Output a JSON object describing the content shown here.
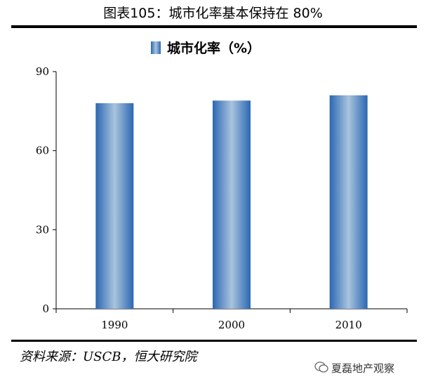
{
  "header": {
    "title": "图表105：城市化率基本保持在 80%"
  },
  "footer": {
    "source": "资料来源：USCB，恒大研究院",
    "watermark": "夏磊地产观察"
  },
  "chart_data": {
    "type": "bar",
    "categories": [
      "1990",
      "2000",
      "2010"
    ],
    "series": [
      {
        "name": "城市化率（%）",
        "values": [
          78,
          79,
          81
        ]
      }
    ],
    "yticks": [
      "0",
      "30",
      "60",
      "90"
    ],
    "ylim": [
      0,
      90
    ],
    "legend_position": "top-center",
    "bar_color": "#2e6fba",
    "grid": false
  }
}
